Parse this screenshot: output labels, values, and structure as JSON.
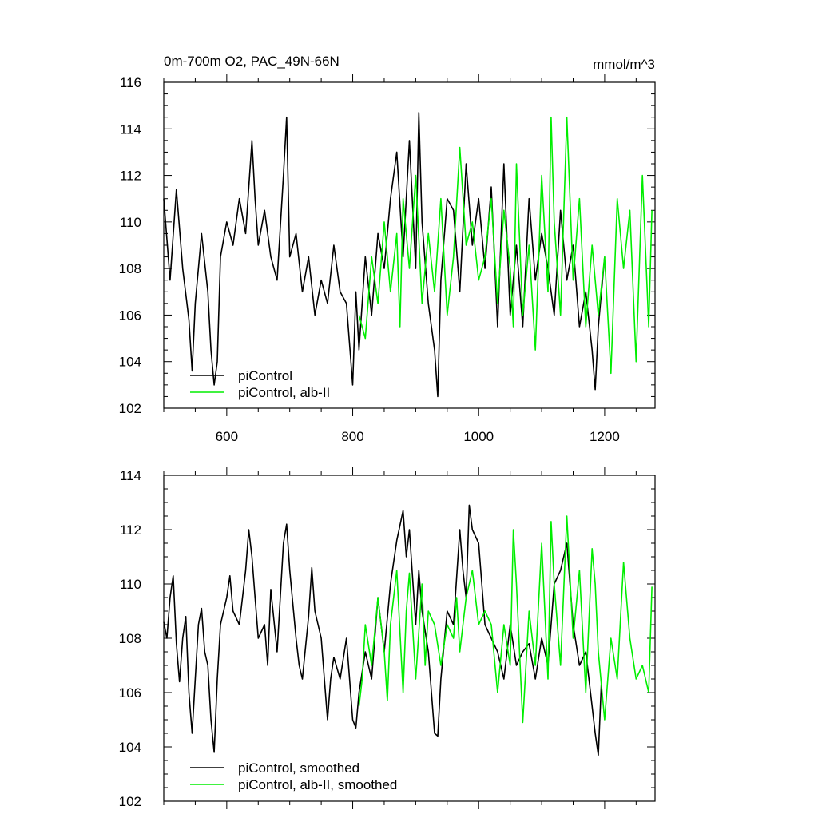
{
  "figure": {
    "title": "0m-700m O2, PAC_49N-66N",
    "units": "mmol/m^3"
  },
  "chart_data": [
    {
      "type": "line",
      "title": "0m-700m O2, PAC_49N-66N",
      "units": "mmol/m^3",
      "xlabel": "",
      "ylabel": "",
      "xlim": [
        500,
        1280
      ],
      "ylim": [
        102,
        116
      ],
      "xticks": [
        600,
        800,
        1000,
        1200
      ],
      "yticks": [
        102,
        104,
        106,
        108,
        110,
        112,
        114,
        116
      ],
      "grid": false,
      "legend_position": "bottom-left",
      "series": [
        {
          "name": "piControl",
          "color": "#000000",
          "x": [
            500,
            510,
            520,
            530,
            540,
            545,
            550,
            560,
            570,
            575,
            580,
            585,
            590,
            600,
            610,
            620,
            630,
            640,
            645,
            650,
            660,
            670,
            680,
            690,
            695,
            700,
            710,
            720,
            730,
            740,
            750,
            760,
            770,
            780,
            790,
            800,
            805,
            810,
            820,
            830,
            840,
            850,
            860,
            870,
            880,
            890,
            900,
            905,
            910,
            920,
            930,
            935,
            940,
            950,
            960,
            970,
            980,
            990,
            1000,
            1010,
            1020,
            1030,
            1040,
            1050,
            1060,
            1070,
            1080,
            1090,
            1100,
            1110,
            1120,
            1130,
            1140,
            1150,
            1160,
            1170,
            1180,
            1185,
            1190,
            1200
          ],
          "y": [
            111.0,
            107.5,
            111.4,
            108.0,
            105.8,
            103.6,
            106.5,
            109.5,
            107.0,
            104.5,
            103.0,
            104.0,
            108.5,
            110.0,
            109.0,
            111.0,
            109.5,
            113.5,
            111.0,
            109.0,
            110.5,
            108.5,
            107.5,
            112.0,
            114.5,
            108.5,
            109.5,
            107.0,
            108.5,
            106.0,
            107.5,
            106.5,
            109.0,
            107.0,
            106.5,
            103.0,
            107.0,
            104.5,
            108.5,
            106.0,
            109.5,
            108.0,
            111.0,
            113.0,
            108.5,
            113.5,
            108.0,
            114.7,
            110.0,
            106.5,
            104.5,
            102.5,
            107.5,
            111.0,
            110.5,
            107.0,
            112.5,
            109.0,
            111.0,
            108.0,
            111.5,
            105.5,
            112.5,
            106.0,
            109.0,
            105.5,
            111.0,
            107.5,
            109.5,
            108.0,
            106.0,
            110.5,
            107.5,
            109.0,
            105.5,
            107.0,
            104.5,
            102.8,
            105.5,
            108.5
          ]
        },
        {
          "name": "piControl, alb-II",
          "color": "#00ee00",
          "x": [
            810,
            820,
            830,
            840,
            850,
            860,
            870,
            875,
            880,
            890,
            900,
            910,
            920,
            930,
            940,
            950,
            960,
            970,
            980,
            990,
            1000,
            1010,
            1020,
            1030,
            1040,
            1050,
            1055,
            1060,
            1070,
            1080,
            1090,
            1100,
            1110,
            1115,
            1120,
            1130,
            1140,
            1150,
            1160,
            1170,
            1180,
            1190,
            1200,
            1210,
            1220,
            1230,
            1240,
            1250,
            1260,
            1270,
            1275
          ],
          "y": [
            106.0,
            105.0,
            108.5,
            106.5,
            110.0,
            107.0,
            109.5,
            105.5,
            111.0,
            108.0,
            112.0,
            106.5,
            109.5,
            107.0,
            111.0,
            106.0,
            108.5,
            113.2,
            109.0,
            110.0,
            107.5,
            108.5,
            111.0,
            106.5,
            110.5,
            108.0,
            105.5,
            112.5,
            106.0,
            109.0,
            104.5,
            112.0,
            107.0,
            114.5,
            110.0,
            106.0,
            114.5,
            107.5,
            111.0,
            105.5,
            109.0,
            106.0,
            108.5,
            103.5,
            111.0,
            108.0,
            110.5,
            104.0,
            112.0,
            105.5,
            110.5
          ]
        }
      ]
    },
    {
      "type": "line",
      "title": "",
      "xlabel": "",
      "ylabel": "",
      "xlim": [
        500,
        1280
      ],
      "ylim": [
        102,
        114
      ],
      "xticks": [
        600,
        800,
        1000,
        1200
      ],
      "yticks": [
        102,
        104,
        106,
        108,
        110,
        112,
        114
      ],
      "grid": false,
      "legend_position": "bottom-left",
      "series": [
        {
          "name": "piControl, smoothed",
          "color": "#000000",
          "x": [
            500,
            505,
            510,
            515,
            520,
            525,
            530,
            535,
            540,
            545,
            550,
            555,
            560,
            565,
            570,
            575,
            580,
            585,
            590,
            600,
            605,
            610,
            620,
            630,
            635,
            640,
            645,
            650,
            660,
            665,
            670,
            680,
            690,
            695,
            700,
            710,
            715,
            720,
            730,
            735,
            740,
            750,
            760,
            765,
            770,
            780,
            790,
            800,
            805,
            810,
            820,
            830,
            840,
            850,
            860,
            870,
            880,
            885,
            890,
            900,
            905,
            910,
            920,
            930,
            935,
            940,
            950,
            960,
            970,
            975,
            980,
            985,
            990,
            1000,
            1010,
            1020,
            1030,
            1040,
            1050,
            1060,
            1070,
            1080,
            1090,
            1100,
            1110,
            1120,
            1130,
            1140,
            1150,
            1160,
            1170,
            1180,
            1185,
            1190,
            1195
          ],
          "y": [
            108.6,
            108.0,
            109.5,
            110.3,
            107.8,
            106.4,
            108.0,
            108.8,
            106.0,
            104.5,
            106.5,
            108.5,
            109.1,
            107.5,
            107.0,
            105.0,
            103.8,
            106.5,
            108.5,
            109.5,
            110.3,
            109.0,
            108.5,
            110.5,
            112.0,
            111.0,
            109.5,
            108.0,
            108.5,
            107.0,
            109.8,
            107.5,
            111.5,
            112.2,
            110.5,
            108.0,
            107.0,
            106.5,
            108.8,
            110.6,
            109.0,
            108.0,
            105.0,
            106.5,
            107.3,
            106.5,
            108.0,
            105.0,
            104.7,
            106.0,
            107.5,
            106.5,
            109.5,
            107.5,
            110.0,
            111.6,
            112.7,
            111.0,
            112.0,
            108.5,
            110.5,
            109.0,
            107.5,
            104.5,
            104.4,
            106.5,
            109.0,
            108.5,
            112.0,
            110.5,
            109.5,
            112.9,
            112.0,
            111.5,
            108.5,
            108.0,
            107.5,
            106.5,
            108.5,
            107.0,
            107.5,
            107.8,
            106.5,
            108.0,
            107.0,
            110.0,
            110.5,
            111.5,
            108.5,
            107.0,
            107.5,
            105.5,
            104.5,
            103.7,
            106.5
          ]
        },
        {
          "name": "piControl, alb-II, smoothed",
          "color": "#00ee00",
          "x": [
            810,
            815,
            820,
            830,
            840,
            850,
            855,
            860,
            870,
            880,
            885,
            890,
            900,
            910,
            915,
            920,
            930,
            940,
            950,
            960,
            965,
            970,
            980,
            990,
            1000,
            1010,
            1020,
            1030,
            1040,
            1050,
            1055,
            1060,
            1070,
            1080,
            1090,
            1100,
            1110,
            1115,
            1120,
            1130,
            1140,
            1150,
            1160,
            1170,
            1180,
            1185,
            1190,
            1200,
            1210,
            1220,
            1230,
            1240,
            1250,
            1260,
            1270,
            1275
          ],
          "y": [
            105.5,
            106.5,
            108.5,
            107.0,
            109.5,
            107.5,
            105.7,
            108.5,
            110.5,
            106.0,
            109.0,
            110.4,
            106.5,
            110.0,
            107.0,
            109.0,
            108.5,
            107.0,
            108.5,
            108.0,
            109.5,
            107.5,
            109.5,
            110.5,
            108.5,
            109.0,
            108.5,
            106.0,
            108.5,
            107.0,
            112.0,
            110.0,
            104.9,
            109.0,
            107.0,
            111.5,
            106.5,
            112.3,
            110.0,
            107.0,
            112.5,
            108.0,
            110.5,
            106.0,
            111.3,
            110.0,
            107.5,
            105.0,
            108.0,
            106.5,
            110.8,
            108.0,
            106.5,
            107.0,
            106.0,
            109.9
          ]
        }
      ]
    }
  ]
}
